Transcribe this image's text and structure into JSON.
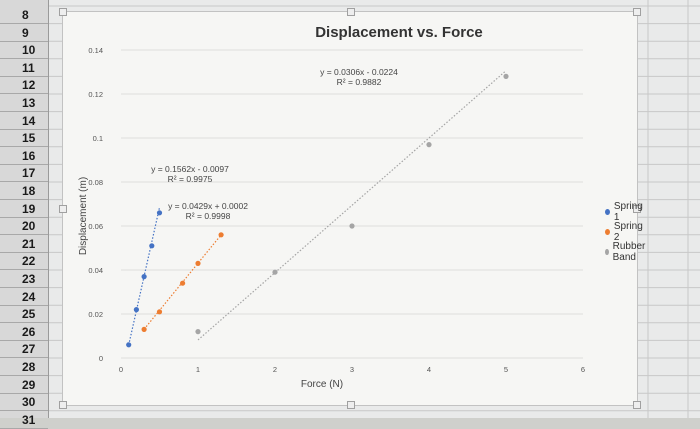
{
  "spreadsheet": {
    "row_numbers": [
      "8",
      "9",
      "10",
      "11",
      "12",
      "13",
      "14",
      "15",
      "16",
      "17",
      "18",
      "19",
      "20",
      "21",
      "22",
      "23",
      "24",
      "25",
      "26",
      "27",
      "28",
      "29",
      "30",
      "31"
    ]
  },
  "chart_data": {
    "type": "scatter",
    "title": "Displacement vs. Force",
    "xlabel": "Force (N)",
    "ylabel": "Displacement (m)",
    "xlim": [
      0,
      6
    ],
    "ylim": [
      0,
      0.14
    ],
    "x_ticks": [
      "0",
      "1",
      "2",
      "3",
      "4",
      "5",
      "6"
    ],
    "y_ticks": [
      "0",
      "0.02",
      "0.04",
      "0.06",
      "0.08",
      "0.1",
      "0.12",
      "0.14"
    ],
    "grid": true,
    "legend_position": "right",
    "series": [
      {
        "name": "Spring 1",
        "color": "#4472c4",
        "x": [
          0.1,
          0.2,
          0.3,
          0.4,
          0.5
        ],
        "y": [
          0.006,
          0.022,
          0.037,
          0.051,
          0.066
        ],
        "trendline": {
          "slope": 0.1562,
          "intercept": -0.0097,
          "x_range": [
            0.1,
            0.5
          ],
          "equation": "y = 0.1562x - 0.0097",
          "r2": "R² = 0.9975"
        }
      },
      {
        "name": "Spring 2",
        "color": "#ed7d31",
        "x": [
          0.3,
          0.5,
          0.8,
          1.0,
          1.3
        ],
        "y": [
          0.013,
          0.021,
          0.034,
          0.043,
          0.056
        ],
        "trendline": {
          "slope": 0.0429,
          "intercept": 0.0002,
          "x_range": [
            0.3,
            1.3
          ],
          "equation": "y = 0.0429x + 0.0002",
          "r2": "R² = 0.9998"
        }
      },
      {
        "name": "Rubber Band",
        "color": "#a5a5a5",
        "x": [
          1.0,
          2.0,
          3.0,
          4.0,
          5.0
        ],
        "y": [
          0.012,
          0.039,
          0.06,
          0.097,
          0.128
        ],
        "trendline": {
          "slope": 0.0306,
          "intercept": -0.0224,
          "x_range": [
            1.0,
            5.0
          ],
          "equation": "y = 0.0306x - 0.0224",
          "r2": "R² = 0.9882"
        }
      }
    ]
  }
}
